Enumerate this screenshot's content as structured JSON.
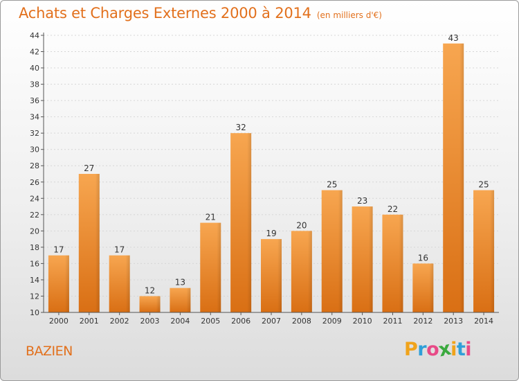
{
  "title": "Achats et Charges Externes 2000 à 2014",
  "subtitle": "(en milliers d'€)",
  "commune": "BAZIEN",
  "brand": {
    "letters": [
      "P",
      "r",
      "o",
      "x",
      "i",
      "t",
      "i"
    ],
    "colors": [
      "#f0a31b",
      "#2f9fd8",
      "#e84a87",
      "#3aa93e",
      "#f0a31b",
      "#2f9fd8",
      "#e84a87"
    ]
  },
  "colors": {
    "accent": "#e2701c",
    "bar_top": "#f7a650",
    "bar_bottom": "#d96f14"
  },
  "chart_data": {
    "type": "bar",
    "categories": [
      "2000",
      "2001",
      "2002",
      "2003",
      "2004",
      "2005",
      "2006",
      "2007",
      "2008",
      "2009",
      "2010",
      "2011",
      "2012",
      "2013",
      "2014"
    ],
    "values": [
      17,
      27,
      17,
      12,
      13,
      21,
      32,
      19,
      20,
      25,
      23,
      22,
      16,
      43,
      25
    ],
    "ylim": [
      10,
      44
    ],
    "yticks": [
      10,
      12,
      14,
      16,
      18,
      20,
      22,
      24,
      26,
      28,
      30,
      32,
      34,
      36,
      38,
      40,
      42,
      44
    ],
    "grid": true
  }
}
